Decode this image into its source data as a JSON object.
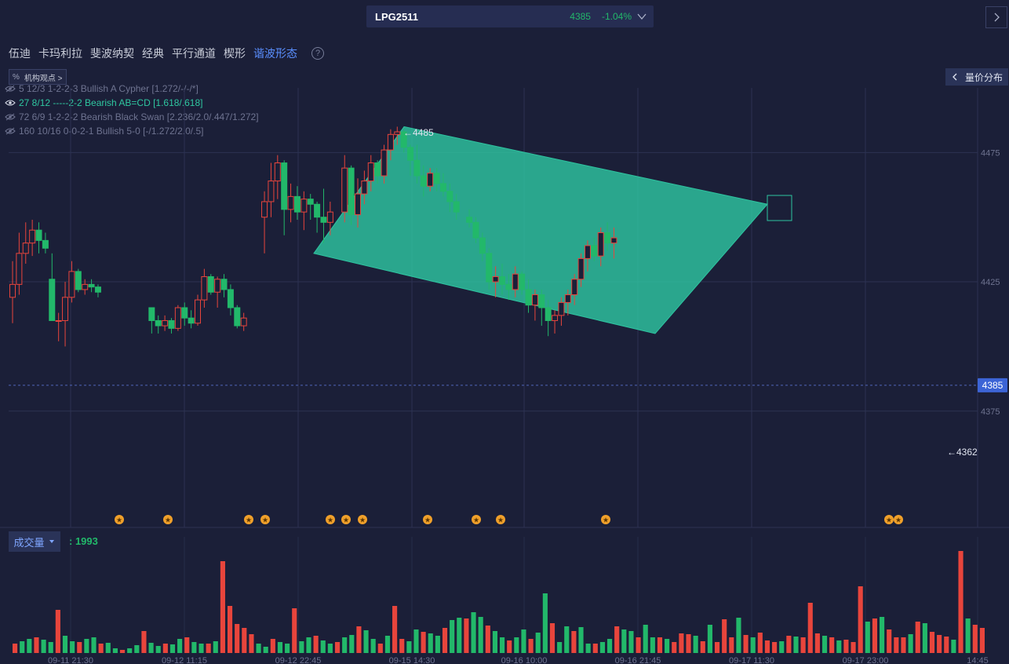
{
  "header": {
    "symbol": "LPG2511",
    "price": "4385",
    "change": "-1.04%"
  },
  "tabs": [
    "伍迪",
    "卡玛利拉",
    "斐波纳契",
    "经典",
    "平行通道",
    "楔形",
    "谐波形态"
  ],
  "active_tab": 6,
  "institution_btn": {
    "logo": "%",
    "label": "机构观点 >"
  },
  "price_volume_btn": "量价分布",
  "patterns": [
    {
      "text": "5 12/3 1-2-2-3 Bullish A Cypher [1.272/-/-/*]",
      "visible": false
    },
    {
      "text": "27 8/12 -----2-2 Bearish AB=CD [1.618/.618]",
      "visible": true
    },
    {
      "text": "72 6/9 1-2-2-2 Bearish Black Swan [2.236/2.0/.447/1.272]",
      "visible": false
    },
    {
      "text": "160 10/16 0-0-2-1 Bullish 5-0 [-/1.272/2.0/.5]",
      "visible": false
    }
  ],
  "volume": {
    "label": "成交量",
    "value": ": 1993"
  },
  "colors": {
    "up": "#e8453c",
    "down": "#22b86a",
    "pattern": "#2ec4a0",
    "bg": "#1b1f38",
    "accent": "#5a8fff"
  },
  "chart_data": {
    "type": "candlestick",
    "y_ticks": [
      4475,
      4425,
      4375
    ],
    "y_range": [
      4330,
      4500
    ],
    "current_price": 4385,
    "high_label": "4485",
    "low_label": "4362",
    "x_tick_labels": [
      "09-11 21:30",
      "09-12 11:15",
      "09-12 22:45",
      "09-15 14:30",
      "09-16 10:00",
      "09-16 21:45",
      "09-17 11:30",
      "09-17 23:00",
      "14:45"
    ],
    "candles": [
      [
        4419,
        4433,
        4409,
        4424
      ],
      [
        4424,
        4444,
        4420,
        4436
      ],
      [
        4436,
        4448,
        4432,
        4440
      ],
      [
        4440,
        4449,
        4435,
        4445
      ],
      [
        4445,
        4448,
        4436,
        4441
      ],
      [
        4441,
        4444,
        4436,
        4438
      ],
      [
        4426,
        4436,
        4410,
        4410
      ],
      [
        4410,
        4413,
        4402,
        4410
      ],
      [
        4410,
        4425,
        4400,
        4419
      ],
      [
        4419,
        4433,
        4417,
        4429
      ],
      [
        4429,
        4430,
        4421,
        4422
      ],
      [
        4422,
        4426,
        4420,
        4424
      ],
      [
        4424,
        4426,
        4421,
        4423
      ],
      [
        4423,
        4424,
        4419,
        4421
      ],
      [
        4415,
        4415,
        4405,
        4410
      ],
      [
        4410,
        4412,
        4405,
        4408
      ],
      [
        4408,
        4412,
        4406,
        4410
      ],
      [
        4410,
        4411,
        4405,
        4407
      ],
      [
        4407,
        4416,
        4406,
        4415
      ],
      [
        4415,
        4417,
        4408,
        4411
      ],
      [
        4411,
        4414,
        4407,
        4409
      ],
      [
        4409,
        4420,
        4408,
        4418
      ],
      [
        4418,
        4430,
        4415,
        4427
      ],
      [
        4427,
        4428,
        4420,
        4421
      ],
      [
        4421,
        4427,
        4415,
        4426
      ],
      [
        4426,
        4428,
        4419,
        4422
      ],
      [
        4422,
        4424,
        4412,
        4415
      ],
      [
        4415,
        4416,
        4407,
        4408
      ],
      [
        4408,
        4413,
        4406,
        4411
      ],
      [
        4450,
        4460,
        4436,
        4456
      ],
      [
        4456,
        4471,
        4450,
        4464
      ],
      [
        4464,
        4474,
        4457,
        4471
      ],
      [
        4471,
        4472,
        4443,
        4453
      ],
      [
        4453,
        4463,
        4448,
        4458
      ],
      [
        4458,
        4462,
        4449,
        4452
      ],
      [
        4452,
        4460,
        4445,
        4457
      ],
      [
        4457,
        4459,
        4449,
        4455
      ],
      [
        4455,
        4456,
        4444,
        4450
      ],
      [
        4450,
        4461,
        4440,
        4448
      ],
      [
        4448,
        4456,
        4443,
        4452
      ],
      [
        4452,
        4474,
        4448,
        4469
      ],
      [
        4469,
        4470,
        4447,
        4451
      ],
      [
        4451,
        4465,
        4446,
        4459
      ],
      [
        4459,
        4468,
        4455,
        4464
      ],
      [
        4464,
        4474,
        4460,
        4471
      ],
      [
        4471,
        4472,
        4463,
        4466
      ],
      [
        4466,
        4478,
        4463,
        4476
      ],
      [
        4476,
        4484,
        4472,
        4482
      ],
      [
        4482,
        4485,
        4478,
        4483
      ],
      [
        4483,
        4484,
        4475,
        4477
      ],
      [
        4477,
        4478,
        4466,
        4472
      ],
      [
        4472,
        4478,
        4463,
        4466
      ],
      [
        4466,
        4470,
        4458,
        4462
      ],
      [
        4462,
        4469,
        4460,
        4467
      ],
      [
        4467,
        4469,
        4460,
        4463
      ],
      [
        4463,
        4467,
        4458,
        4460
      ],
      [
        4460,
        4463,
        4452,
        4456
      ],
      [
        4456,
        4459,
        4449,
        4452
      ],
      [
        4450,
        4453,
        4446,
        4448
      ],
      [
        4448,
        4450,
        4440,
        4442
      ],
      [
        4442,
        4444,
        4433,
        4436
      ],
      [
        4436,
        4438,
        4422,
        4425
      ],
      [
        4425,
        4431,
        4419,
        4427
      ],
      [
        4427,
        4432,
        4420,
        4424
      ],
      [
        4424,
        4428,
        4418,
        4422
      ],
      [
        4422,
        4431,
        4419,
        4428
      ],
      [
        4428,
        4429,
        4420,
        4422
      ],
      [
        4422,
        4426,
        4413,
        4416
      ],
      [
        4416,
        4422,
        4410,
        4420
      ],
      [
        4420,
        4422,
        4408,
        4415
      ],
      [
        4415,
        4418,
        4404,
        4410
      ],
      [
        4410,
        4414,
        4405,
        4412
      ],
      [
        4412,
        4419,
        4408,
        4417
      ],
      [
        4417,
        4422,
        4412,
        4420
      ],
      [
        4420,
        4428,
        4416,
        4426
      ],
      [
        4426,
        4436,
        4423,
        4434
      ],
      [
        4434,
        4441,
        4429,
        4439
      ],
      [
        4439,
        4442,
        4433,
        4435
      ],
      [
        4435,
        4446,
        4431,
        4444
      ],
      [
        4444,
        4448,
        4437,
        4440
      ],
      [
        4440,
        4446,
        4434,
        4442
      ]
    ]
  }
}
